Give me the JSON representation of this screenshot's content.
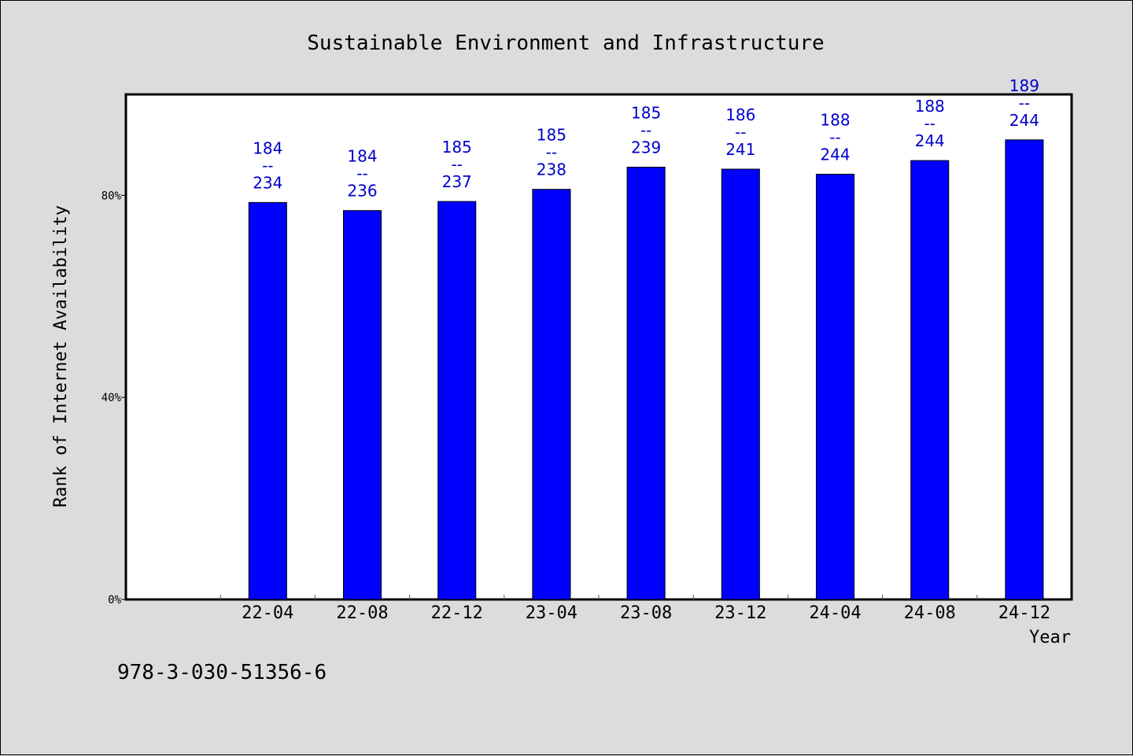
{
  "chart_data": {
    "type": "bar",
    "title": "Sustainable Environment and Infrastructure",
    "xlabel": "Year",
    "ylabel": "Rank of Internet Availability",
    "categories": [
      "22-04",
      "22-08",
      "22-12",
      "23-04",
      "23-08",
      "23-12",
      "24-04",
      "24-08",
      "24-12"
    ],
    "series": [
      {
        "values": [
          78.6,
          77.0,
          78.8,
          81.2,
          85.6,
          85.2,
          84.2,
          86.9,
          91.0
        ]
      }
    ],
    "data_labels": [
      {
        "top": "184",
        "sep": "--",
        "bottom": "234"
      },
      {
        "top": "184",
        "sep": "--",
        "bottom": "236"
      },
      {
        "top": "185",
        "sep": "--",
        "bottom": "237"
      },
      {
        "top": "185",
        "sep": "--",
        "bottom": "238"
      },
      {
        "top": "185",
        "sep": "--",
        "bottom": "239"
      },
      {
        "top": "186",
        "sep": "--",
        "bottom": "241"
      },
      {
        "top": "188",
        "sep": "--",
        "bottom": "244"
      },
      {
        "top": "188",
        "sep": "--",
        "bottom": "244"
      },
      {
        "top": "189",
        "sep": "--",
        "bottom": "244"
      }
    ],
    "yticks": [
      0,
      40,
      80
    ],
    "ytick_labels": [
      "0%",
      "40%",
      "80%"
    ],
    "ylim": [
      0,
      100
    ],
    "grid": false,
    "legend": "none",
    "colors": {
      "bar": "#0000ff",
      "bar_label": "#0000cc",
      "background": "#dcdcdc",
      "plot_background": "#ffffff"
    }
  },
  "footer": {
    "code": "978-3-030-51356-6"
  }
}
